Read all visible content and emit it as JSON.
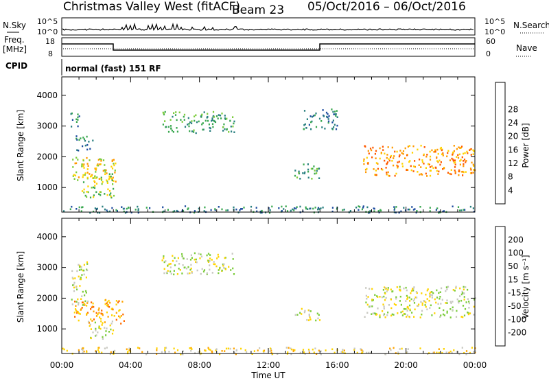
{
  "header": {
    "site": "Christmas Valley West (fitACF)",
    "beam": "Beam 23",
    "dates": "05/Oct/2016 – 06/Oct/2016"
  },
  "strip": {
    "nsky_label": "N.Sky",
    "nsky_ticks": [
      "10^5",
      "10^0"
    ],
    "nsearch_label": "N.Search",
    "freq_label": "Freq.",
    "freq_unit": "[MHz]",
    "freq_ticks": [
      "18",
      "8"
    ],
    "nave_ticks": [
      "60",
      "0"
    ],
    "nave_label": "Nave",
    "cpid_label": "CPID",
    "cpid_value": "normal (fast) 151 RF"
  },
  "colors": {
    "power": [
      "#0000ff",
      "#1f4ea0",
      "#2a8080",
      "#3aa850",
      "#7ccc3c",
      "#ffd400",
      "#ff9a00",
      "#ff5a00",
      "#ff0000"
    ],
    "velocity": [
      "#ff0000",
      "#ff6a00",
      "#ffa500",
      "#ffd400",
      "#c8c8c0",
      "#7ccc3c",
      "#3aa850",
      "#1f4ea0",
      "#0000ff"
    ]
  },
  "chart_data": [
    {
      "type": "heatmap",
      "name": "power",
      "ylabel": "Slant Range [km]",
      "yticks": [
        1000,
        2000,
        3000,
        4000
      ],
      "ylim": [
        200,
        4600
      ],
      "colorbar_label": "Power [dB]",
      "colorbar_ticks": [
        "4",
        "8",
        "12",
        "16",
        "20",
        "24",
        "28"
      ],
      "x_ticks": [
        "00:00",
        "04:00",
        "08:00",
        "12:00",
        "16:00",
        "20:00",
        "00:00"
      ],
      "regions": [
        {
          "t": [
            0.6,
            3.2
          ],
          "r": [
            1200,
            2000
          ],
          "level": 5
        },
        {
          "t": [
            1.0,
            3.0
          ],
          "r": [
            700,
            1500
          ],
          "level": 4
        },
        {
          "t": [
            0.8,
            1.8
          ],
          "r": [
            2200,
            2700
          ],
          "level": 2
        },
        {
          "t": [
            0.4,
            1.0
          ],
          "r": [
            3000,
            3500
          ],
          "level": 2
        },
        {
          "t": [
            5.8,
            10.0
          ],
          "r": [
            2800,
            3500
          ],
          "level": 3
        },
        {
          "t": [
            13.5,
            15.0
          ],
          "r": [
            1300,
            1800
          ],
          "level": 3
        },
        {
          "t": [
            14.0,
            16.0
          ],
          "r": [
            2900,
            3600
          ],
          "level": 2
        },
        {
          "t": [
            17.5,
            24.0
          ],
          "r": [
            1400,
            2400
          ],
          "level": 6
        },
        {
          "t": [
            0.0,
            24.0
          ],
          "r": [
            200,
            420
          ],
          "level": 2
        }
      ]
    },
    {
      "type": "heatmap",
      "name": "velocity",
      "ylabel": "Slant Range [km]",
      "yticks": [
        1000,
        2000,
        3000,
        4000
      ],
      "ylim": [
        200,
        4600
      ],
      "colorbar_label": "Velocity [m s⁻¹]",
      "colorbar_ticks": [
        "-200",
        "-100",
        "-50",
        "-15",
        "15",
        "50",
        "100",
        "200"
      ],
      "x_ticks": [
        "00:00",
        "04:00",
        "08:00",
        "12:00",
        "16:00",
        "20:00",
        "00:00"
      ],
      "xlabel": "Time UT",
      "regions": [
        {
          "t": [
            0.6,
            3.6
          ],
          "r": [
            1200,
            2000
          ],
          "level": 2
        },
        {
          "t": [
            0.5,
            1.5
          ],
          "r": [
            1800,
            3200
          ],
          "level": 4
        },
        {
          "t": [
            1.5,
            3.0
          ],
          "r": [
            700,
            1300
          ],
          "level": 4
        },
        {
          "t": [
            5.8,
            10.0
          ],
          "r": [
            2800,
            3500
          ],
          "level": 4
        },
        {
          "t": [
            13.5,
            15.0
          ],
          "r": [
            1300,
            1700
          ],
          "level": 4
        },
        {
          "t": [
            17.5,
            24.0
          ],
          "r": [
            1400,
            2400
          ],
          "level": 4
        },
        {
          "t": [
            0.0,
            24.0
          ],
          "r": [
            200,
            420
          ],
          "level": 3
        }
      ]
    }
  ]
}
